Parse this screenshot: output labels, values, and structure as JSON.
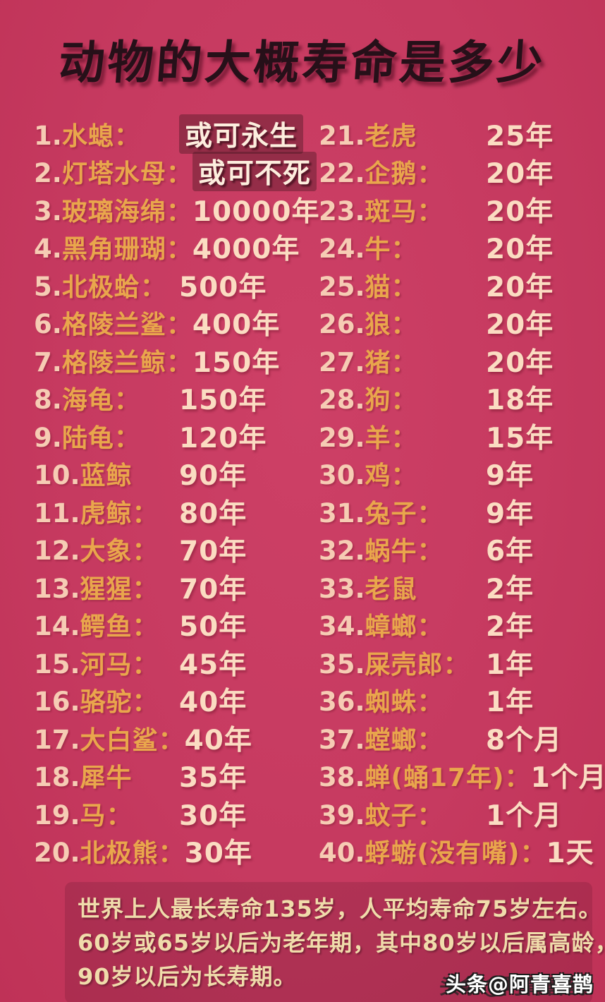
{
  "title": "动物的大概寿命是多少",
  "colors": {
    "background": "#c63a60",
    "title_text": "#261019",
    "entry_number": "#f6ccb4",
    "animal_name_gold": "#e9a64c",
    "value_text": "#fbdcc2",
    "footer_text": "#f0dcab",
    "watermark_text": "#ffffff"
  },
  "entries_left": [
    {
      "num": "1.",
      "name": "水螅：",
      "value": "或可永生",
      "backdrop": true
    },
    {
      "num": "2.",
      "name": "灯塔水母：",
      "value": "或可不死",
      "backdrop": true
    },
    {
      "num": "3.",
      "name": "玻璃海绵：",
      "value": "10000年"
    },
    {
      "num": "4.",
      "name": "黑角珊瑚：",
      "value": "4000年"
    },
    {
      "num": "5.",
      "name": "北极蛤：",
      "value": "500年"
    },
    {
      "num": "6.",
      "name": "格陵兰鲨：",
      "value": "400年"
    },
    {
      "num": "7.",
      "name": "格陵兰鲸：",
      "value": "150年"
    },
    {
      "num": "8.",
      "name": "海龟：",
      "value": "150年"
    },
    {
      "num": "9.",
      "name": "陆龟：",
      "value": "120年"
    },
    {
      "num": "10.",
      "name": "蓝鲸",
      "value": "90年"
    },
    {
      "num": "11.",
      "name": "虎鲸：",
      "value": "80年"
    },
    {
      "num": "12.",
      "name": "大象：",
      "value": "70年"
    },
    {
      "num": "13.",
      "name": "猩猩：",
      "value": "70年"
    },
    {
      "num": "14.",
      "name": "鳄鱼：",
      "value": "50年"
    },
    {
      "num": "15.",
      "name": "河马：",
      "value": "45年"
    },
    {
      "num": "16.",
      "name": "骆驼：",
      "value": "40年"
    },
    {
      "num": "17.",
      "name": "大白鲨：",
      "value": "40年"
    },
    {
      "num": "18.",
      "name": "犀牛",
      "value": "35年"
    },
    {
      "num": "19.",
      "name": "马：",
      "value": "30年"
    },
    {
      "num": "20.",
      "name": "北极熊：",
      "value": "30年"
    }
  ],
  "entries_right": [
    {
      "num": "21.",
      "name": "老虎",
      "value": "25年"
    },
    {
      "num": "22.",
      "name": "企鹅：",
      "value": "20年"
    },
    {
      "num": "23.",
      "name": "斑马：",
      "value": "20年"
    },
    {
      "num": "24.",
      "name": "牛：",
      "value": "20年"
    },
    {
      "num": "25.",
      "name": "猫：",
      "value": "20年"
    },
    {
      "num": "26.",
      "name": "狼：",
      "value": "20年"
    },
    {
      "num": "27.",
      "name": "猪：",
      "value": "20年"
    },
    {
      "num": "28.",
      "name": "狗：",
      "value": "18年"
    },
    {
      "num": "29.",
      "name": "羊：",
      "value": "15年"
    },
    {
      "num": "30.",
      "name": "鸡：",
      "value": "9年"
    },
    {
      "num": "31.",
      "name": "兔子：",
      "value": "9年"
    },
    {
      "num": "32.",
      "name": "蜗牛：",
      "value": "6年"
    },
    {
      "num": "33.",
      "name": "老鼠",
      "value": "2年"
    },
    {
      "num": "34.",
      "name": "蟑螂：",
      "value": "2年"
    },
    {
      "num": "35.",
      "name": "屎壳郎：",
      "value": "1年"
    },
    {
      "num": "36.",
      "name": "蜘蛛：",
      "value": "1年"
    },
    {
      "num": "37.",
      "name": "螳螂：",
      "value": "8个月"
    },
    {
      "num": "38.",
      "name": "蝉(蛹17年)：",
      "value": "1个月"
    },
    {
      "num": "39.",
      "name": "蚊子：",
      "value": "1个月"
    },
    {
      "num": "40.",
      "name": "蜉蝣(没有嘴)：",
      "value": "1天"
    }
  ],
  "footer_lines": [
    "世界上人最长寿命135岁，人平均寿命75岁左右。",
    "60岁或65岁以后为老年期，其中80岁以后属高龄，",
    "90岁以后为长寿期。"
  ],
  "watermark": "头条@阿青喜鹊"
}
